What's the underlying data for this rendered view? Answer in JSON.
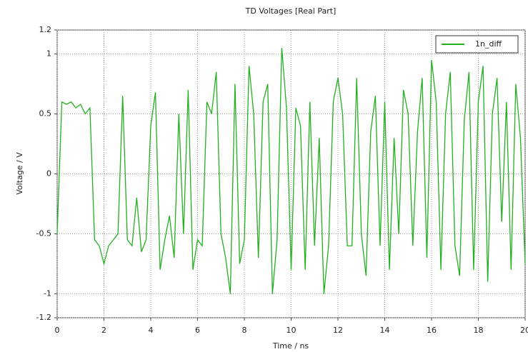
{
  "chart_data": {
    "type": "line",
    "title": "TD Voltages [Real Part]",
    "x_label": "Time / ns",
    "y_label": "Voltage / V",
    "x": [
      0,
      0.2,
      0.4,
      0.6,
      0.8,
      1,
      1.2,
      1.4,
      1.6,
      1.8,
      2,
      2.2,
      2.4,
      2.6,
      2.8,
      3,
      3.2,
      3.4,
      3.6,
      3.8,
      4,
      4.2,
      4.4,
      4.6,
      4.8,
      5,
      5.2,
      5.4,
      5.6,
      5.8,
      6,
      6.2,
      6.4,
      6.6,
      6.8,
      7,
      7.2,
      7.4,
      7.6,
      7.8,
      8,
      8.2,
      8.4,
      8.6,
      8.8,
      9,
      9.2,
      9.4,
      9.6,
      9.8,
      10,
      10.2,
      10.4,
      10.6,
      10.8,
      11,
      11.2,
      11.4,
      11.6,
      11.8,
      12,
      12.2,
      12.4,
      12.6,
      12.8,
      13,
      13.2,
      13.4,
      13.6,
      13.8,
      14,
      14.2,
      14.4,
      14.6,
      14.8,
      15,
      15.2,
      15.4,
      15.6,
      15.8,
      16,
      16.2,
      16.4,
      16.6,
      16.8,
      17,
      17.2,
      17.4,
      17.6,
      17.8,
      18,
      18.2,
      18.4,
      18.6,
      18.8,
      19,
      19.2,
      19.4,
      19.6,
      19.8,
      20
    ],
    "series": [
      {
        "name": "1n_diff",
        "color": "#22b01e",
        "values": [
          -0.5,
          0.6,
          0.58,
          0.6,
          0.55,
          0.58,
          0.5,
          0.55,
          -0.55,
          -0.6,
          -0.75,
          -0.6,
          -0.55,
          -0.5,
          0.65,
          -0.55,
          -0.6,
          -0.2,
          -0.65,
          -0.55,
          0.4,
          0.68,
          -0.8,
          -0.55,
          -0.35,
          -0.7,
          0.5,
          -0.5,
          0.7,
          -0.8,
          -0.55,
          -0.6,
          0.6,
          0.5,
          0.85,
          -0.5,
          -0.7,
          -1.0,
          0.75,
          -0.75,
          -0.55,
          0.9,
          0.5,
          -0.7,
          0.6,
          0.75,
          -1.0,
          -0.55,
          1.05,
          0.55,
          -0.8,
          0.55,
          0.4,
          -0.8,
          0.6,
          -0.6,
          0.3,
          -1.0,
          -0.6,
          0.6,
          0.8,
          0.5,
          -0.6,
          -0.6,
          0.8,
          -0.5,
          -0.85,
          0.35,
          0.65,
          -0.6,
          0.6,
          -0.8,
          0.3,
          -0.5,
          0.7,
          0.5,
          -0.6,
          0.35,
          0.8,
          -0.7,
          0.95,
          0.6,
          -0.8,
          0.5,
          0.85,
          -0.6,
          -0.85,
          0.45,
          0.85,
          -0.8,
          0.6,
          0.9,
          -0.9,
          0.5,
          0.8,
          -0.4,
          0.6,
          -0.8,
          0.75,
          0.3,
          -0.75
        ]
      }
    ],
    "xlim": [
      0,
      20
    ],
    "xticks": [
      0,
      2,
      4,
      6,
      8,
      10,
      12,
      14,
      16,
      18,
      20
    ],
    "ylim": [
      -1.2,
      1.2
    ],
    "yticks": [
      -1.2,
      -1,
      -0.5,
      0,
      0.5,
      1,
      1.2
    ],
    "grid": true,
    "legend": "upper right"
  }
}
